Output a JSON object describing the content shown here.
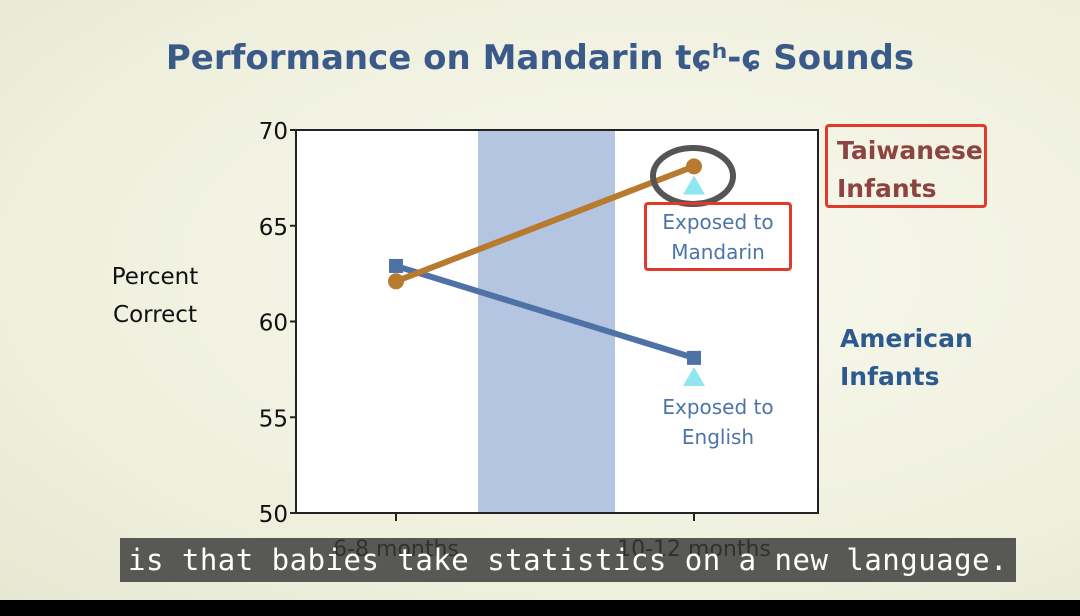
{
  "slide": {
    "title": "Performance on Mandarin tɕʰ-ɕ Sounds",
    "caption": "is that babies take statistics on a new language.",
    "legend": {
      "taiwanese": [
        "Taiwanese",
        "Infants"
      ],
      "american": [
        "American",
        "Infants"
      ]
    },
    "annotations": {
      "mandarin": [
        "Exposed to",
        "Mandarin"
      ],
      "english": [
        "Exposed to",
        "English"
      ]
    }
  },
  "colors": {
    "taiwanese_line": "#b87a2e",
    "american_line": "#4f72a6",
    "triangle": "#8fe6ee",
    "shaded_band": "#b4c5e2",
    "highlight_box": "#e03a2a",
    "circle": "#555555"
  },
  "chart_data": {
    "type": "line",
    "categories": [
      "6-8 months",
      "10-12 months"
    ],
    "ylabel": [
      "Percent",
      "Correct"
    ],
    "ylim": [
      50,
      70
    ],
    "yticks": [
      50,
      55,
      60,
      65,
      70
    ],
    "series": [
      {
        "name": "Taiwanese Infants",
        "values": [
          62.1,
          68.1
        ],
        "marker": "circle"
      },
      {
        "name": "American Infants",
        "values": [
          62.9,
          58.1
        ],
        "marker": "square"
      }
    ],
    "triangle_markers": [
      {
        "x": "10-12 months",
        "value": 67.1
      },
      {
        "x": "10-12 months",
        "value": 57.1
      }
    ],
    "shaded_region": "between 6-8 months and 10-12 months",
    "highlight_circle": "Taiwanese Infants at 10-12 months"
  }
}
